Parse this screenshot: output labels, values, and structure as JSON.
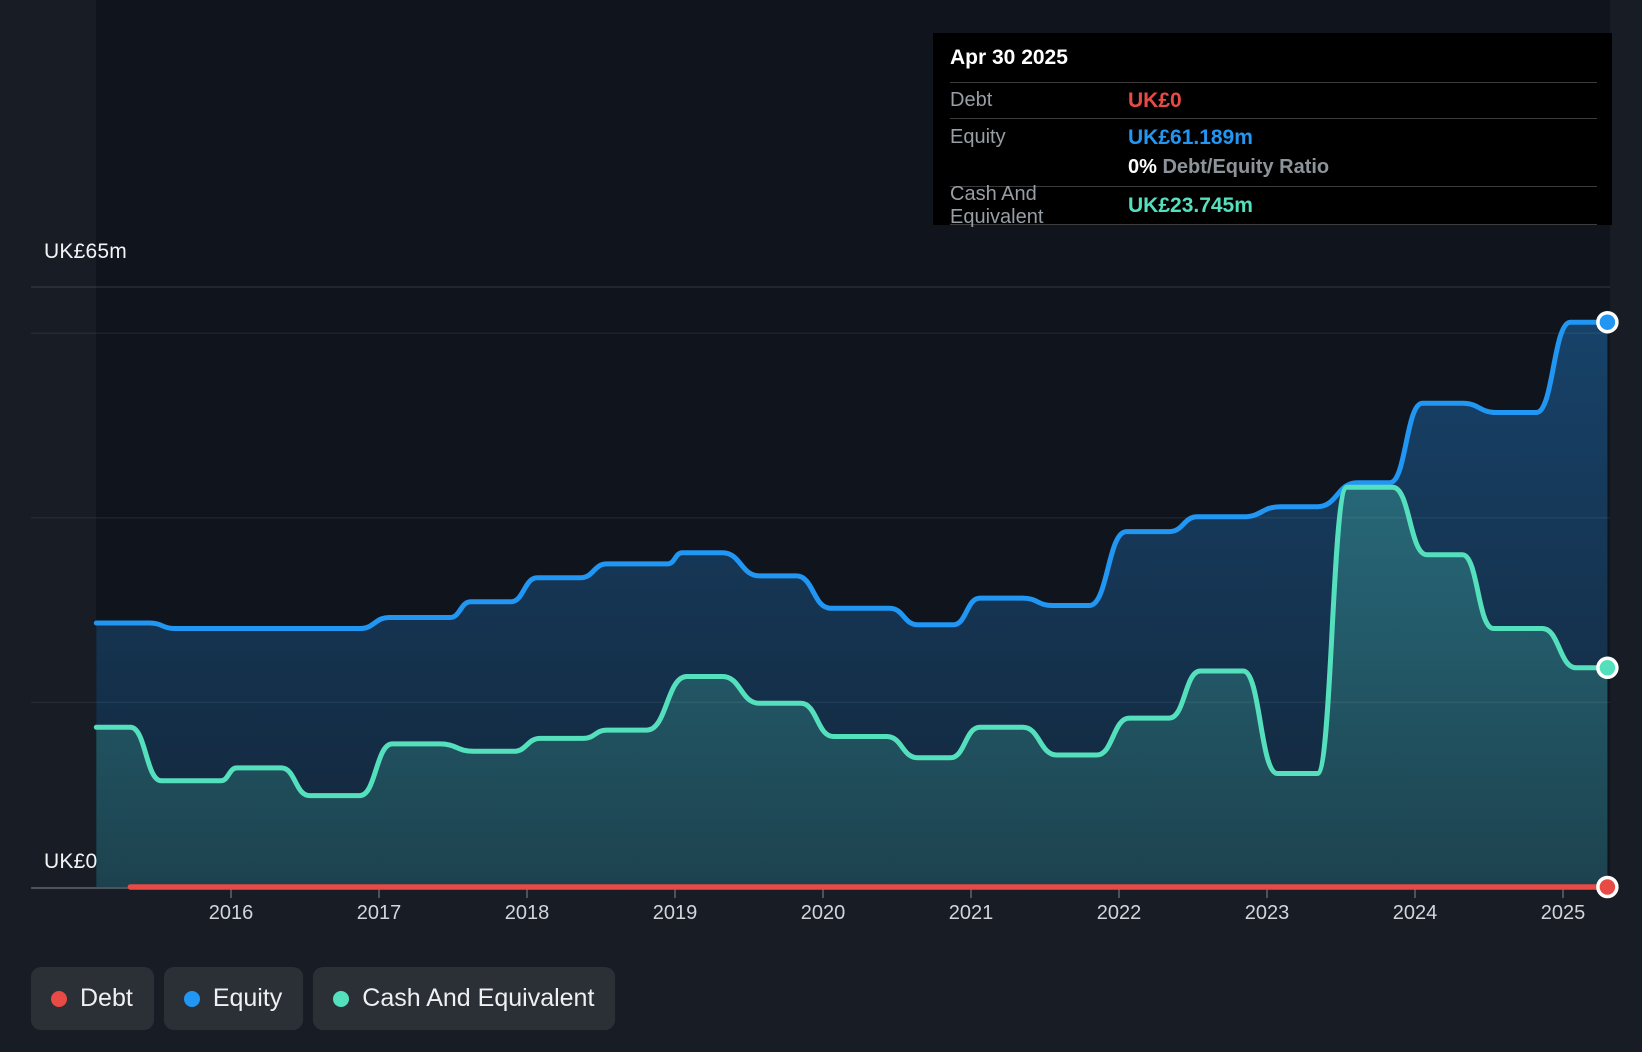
{
  "colors": {
    "background": "#181c24",
    "plot_background": "#10151d",
    "debt": "#e84b45",
    "equity": "#2196f3",
    "cash": "#55e0bd",
    "axis_line": "#4e535b",
    "tick_label": "#d2d5da"
  },
  "y_axis": {
    "top_label": "UK£65m",
    "zero_label": "UK£0"
  },
  "tooltip": {
    "date": "Apr 30 2025",
    "debt_label": "Debt",
    "debt_value": "UK£0",
    "equity_label": "Equity",
    "equity_value": "UK£61.189m",
    "ratio_value": "0%",
    "ratio_label": " Debt/Equity Ratio",
    "cash_label": "Cash And Equivalent",
    "cash_value": "UK£23.745m"
  },
  "legend": {
    "items": [
      {
        "label": "Debt",
        "color": "#e84b45"
      },
      {
        "label": "Equity",
        "color": "#2196f3"
      },
      {
        "label": "Cash And Equivalent",
        "color": "#55e0bd"
      }
    ]
  },
  "chart_data": {
    "type": "area",
    "title": "Debt to Equity history",
    "y_unit": "UK£m",
    "ylim": [
      0,
      65
    ],
    "xlim": [
      2015.05,
      2025.35
    ],
    "x_ticks": [
      "2016",
      "2017",
      "2018",
      "2019",
      "2020",
      "2021",
      "2022",
      "2023",
      "2024",
      "2025"
    ],
    "gridline_values": [
      65,
      60,
      40,
      20
    ],
    "legend_position": "bottom-left",
    "note": "segments are [startYear, endYear, valueUKm]; step chart with smoothed transitions; last point Apr 30 2025",
    "series": [
      {
        "name": "Debt",
        "color": "#e84b45",
        "fill": false,
        "end_value": 0,
        "segments": [
          [
            2015.32,
            2025.3,
            0
          ]
        ]
      },
      {
        "name": "Equity",
        "color": "#2196f3",
        "fill": true,
        "end_value": 61.189,
        "segments": [
          [
            2015.09,
            2015.45,
            28.6
          ],
          [
            2015.62,
            2016.87,
            28.0
          ],
          [
            2017.07,
            2017.48,
            29.2
          ],
          [
            2017.62,
            2017.89,
            30.9
          ],
          [
            2018.07,
            2018.36,
            33.5
          ],
          [
            2018.54,
            2018.95,
            35.0
          ],
          [
            2019.05,
            2019.32,
            36.2
          ],
          [
            2019.57,
            2019.82,
            33.7
          ],
          [
            2020.05,
            2020.45,
            30.2
          ],
          [
            2020.64,
            2020.88,
            28.4
          ],
          [
            2021.06,
            2021.35,
            31.3
          ],
          [
            2021.55,
            2021.8,
            30.5
          ],
          [
            2022.05,
            2022.34,
            38.5
          ],
          [
            2022.53,
            2022.84,
            40.1
          ],
          [
            2023.09,
            2023.34,
            41.2
          ],
          [
            2023.61,
            2023.83,
            43.8
          ],
          [
            2024.05,
            2024.32,
            52.4
          ],
          [
            2024.55,
            2024.82,
            51.4
          ],
          [
            2025.05,
            2025.3,
            61.189
          ]
        ]
      },
      {
        "name": "Cash And Equivalent",
        "color": "#55e0bd",
        "fill": true,
        "end_value": 23.745,
        "segments": [
          [
            2015.09,
            2015.32,
            17.3
          ],
          [
            2015.53,
            2015.93,
            11.5
          ],
          [
            2016.04,
            2016.34,
            12.9
          ],
          [
            2016.53,
            2016.87,
            9.9
          ],
          [
            2017.09,
            2017.41,
            15.5
          ],
          [
            2017.64,
            2017.91,
            14.7
          ],
          [
            2018.09,
            2018.38,
            16.1
          ],
          [
            2018.54,
            2018.81,
            17.0
          ],
          [
            2019.08,
            2019.32,
            22.8
          ],
          [
            2019.57,
            2019.85,
            19.9
          ],
          [
            2020.07,
            2020.43,
            16.3
          ],
          [
            2020.64,
            2020.86,
            14.0
          ],
          [
            2021.06,
            2021.35,
            17.3
          ],
          [
            2021.58,
            2021.85,
            14.3
          ],
          [
            2022.07,
            2022.34,
            18.3
          ],
          [
            2022.55,
            2022.84,
            23.4
          ],
          [
            2023.07,
            2023.34,
            12.3
          ],
          [
            2023.54,
            2023.85,
            43.3
          ],
          [
            2024.08,
            2024.32,
            36.0
          ],
          [
            2024.53,
            2024.86,
            28.0
          ],
          [
            2025.09,
            2025.3,
            23.745
          ]
        ]
      }
    ]
  }
}
